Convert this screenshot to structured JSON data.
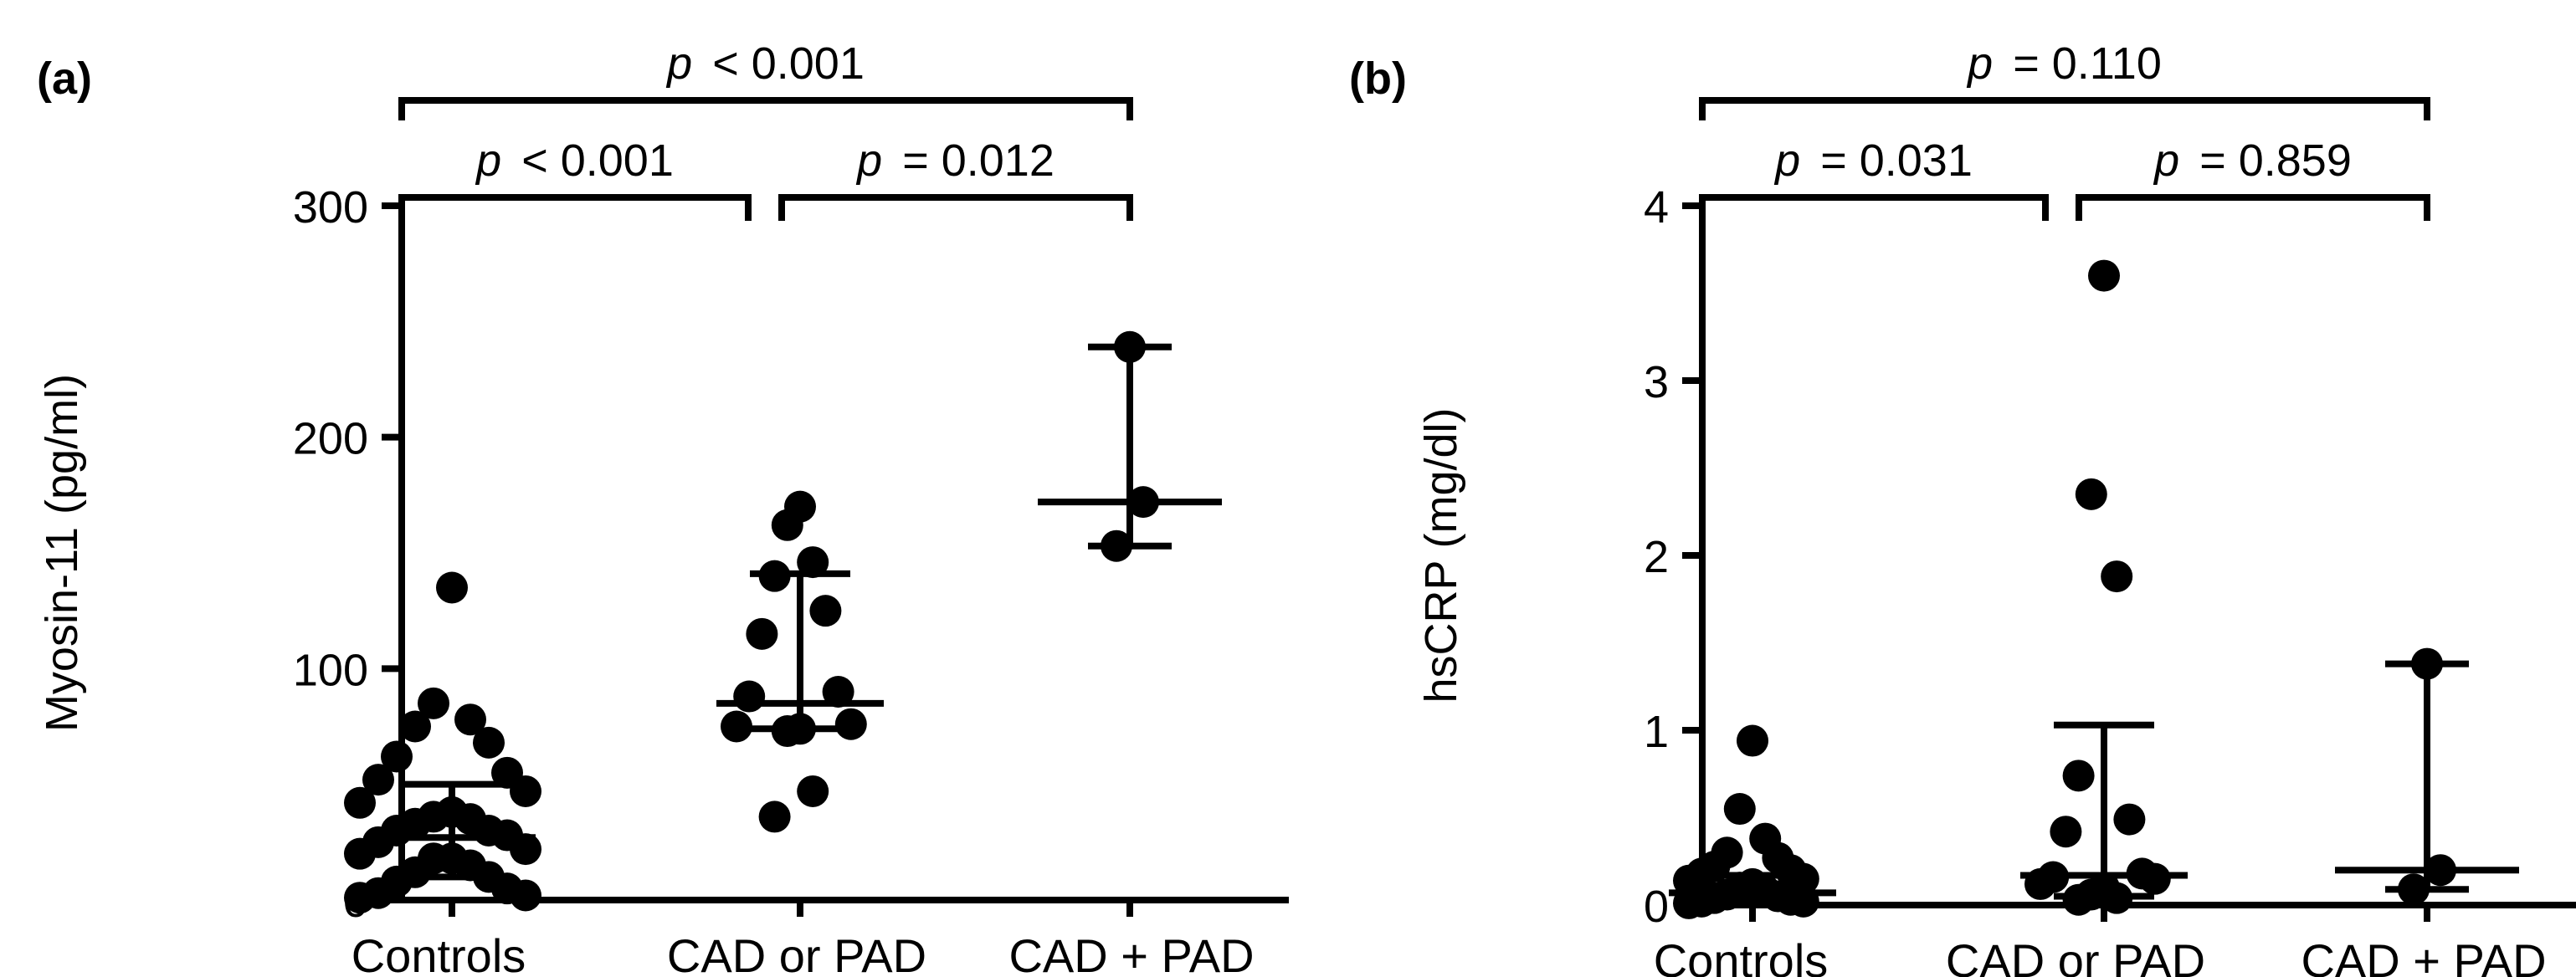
{
  "chart_data": [
    {
      "panel_label": "(a)",
      "type": "scatter",
      "ylabel": "Myosin-11 (pg/ml)",
      "ylim": [
        0,
        300
      ],
      "yticks": [
        0,
        100,
        200,
        300
      ],
      "categories": [
        "Controls",
        "CAD or PAD",
        "CAD + PAD"
      ],
      "groups": [
        {
          "name": "Controls",
          "points": [
            135,
            85,
            78,
            75,
            68,
            62,
            55,
            52,
            47,
            42,
            38,
            36,
            35,
            33,
            30,
            28,
            25,
            22,
            20,
            18,
            15,
            12,
            10,
            8,
            5,
            3,
            2,
            1,
            30,
            18
          ],
          "median": 27,
          "q1": 10,
          "q3": 50
        },
        {
          "name": "CAD or PAD",
          "points": [
            170,
            162,
            146,
            140,
            125,
            115,
            90,
            88,
            76,
            75,
            74,
            73,
            47,
            36
          ],
          "median": 85,
          "q1": 74,
          "q3": 141
        },
        {
          "name": "CAD + PAD",
          "points": [
            239,
            172,
            153
          ],
          "median": 172,
          "q1": 153,
          "q3": 239
        }
      ],
      "comparisons": [
        {
          "groups": [
            "Controls",
            "CAD or PAD"
          ],
          "p_symbol": "p",
          "p_text": "< 0.001"
        },
        {
          "groups": [
            "CAD or PAD",
            "CAD + PAD"
          ],
          "p_symbol": "p",
          "p_text": "= 0.012"
        },
        {
          "groups": [
            "Controls",
            "CAD + PAD"
          ],
          "p_symbol": "p",
          "p_text": "< 0.001"
        }
      ]
    },
    {
      "panel_label": "(b)",
      "type": "scatter",
      "ylabel": "hsCRP (mg/dl)",
      "ylim": [
        0,
        4
      ],
      "yticks": [
        0,
        1,
        2,
        3,
        4
      ],
      "categories": [
        "Controls",
        "CAD or PAD",
        "CAD + PAD"
      ],
      "groups": [
        {
          "name": "Controls",
          "points": [
            0.94,
            0.55,
            0.38,
            0.3,
            0.27,
            0.22,
            0.2,
            0.18,
            0.15,
            0.14,
            0.12,
            0.1,
            0.08,
            0.06,
            0.05,
            0.04,
            0.03,
            0.02,
            0.02,
            0.01
          ],
          "median": 0.07,
          "q1": 0.02,
          "q3": 0.17
        },
        {
          "name": "CAD or PAD",
          "points": [
            3.6,
            2.35,
            1.88,
            0.74,
            0.49,
            0.42,
            0.18,
            0.16,
            0.15,
            0.12,
            0.1,
            0.06,
            0.04,
            0.03
          ],
          "median": 0.17,
          "q1": 0.05,
          "q3": 1.03
        },
        {
          "name": "CAD + PAD",
          "points": [
            1.38,
            0.2,
            0.09
          ],
          "median": 0.2,
          "q1": 0.09,
          "q3": 1.38
        }
      ],
      "comparisons": [
        {
          "groups": [
            "Controls",
            "CAD or PAD"
          ],
          "p_symbol": "p",
          "p_text": "= 0.031"
        },
        {
          "groups": [
            "CAD or PAD",
            "CAD + PAD"
          ],
          "p_symbol": "p",
          "p_text": "= 0.859"
        },
        {
          "groups": [
            "Controls",
            "CAD + PAD"
          ],
          "p_symbol": "p",
          "p_text": "= 0.110"
        }
      ]
    }
  ]
}
